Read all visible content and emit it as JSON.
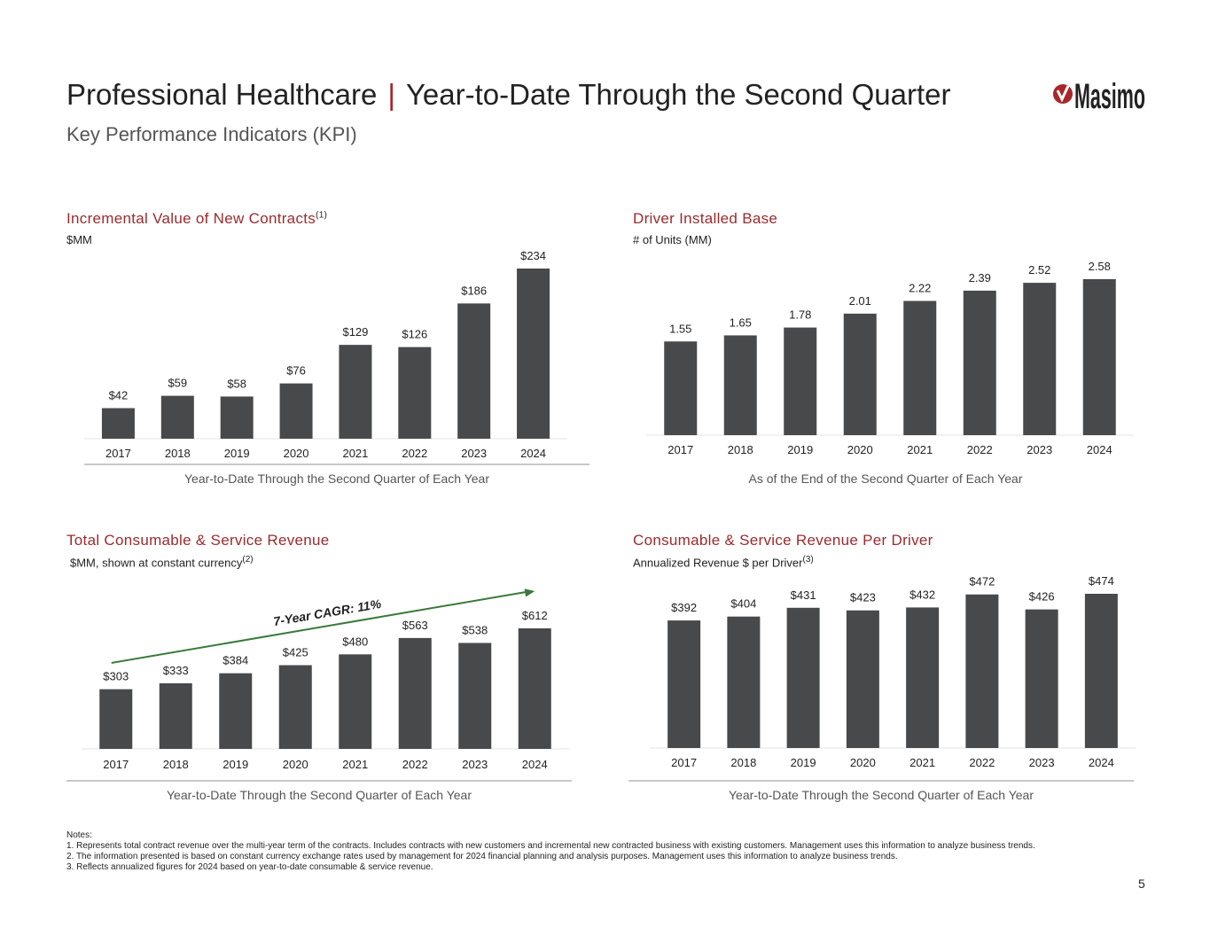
{
  "header": {
    "title_left": "Professional Healthcare",
    "title_sep": "|",
    "title_right": "Year-to-Date Through the Second Quarter",
    "subtitle": "Key Performance Indicators (KPI)",
    "logo_text": "Masimo",
    "brand_color": "#a8262b"
  },
  "panels": [
    {
      "title": "Incremental Value of New Contracts",
      "title_sup": "(1)",
      "unit": "$MM",
      "unit_sup": "",
      "footer": "Year-to-Date Through the Second Quarter of Each Year"
    },
    {
      "title": "Driver Installed Base",
      "title_sup": "",
      "unit": "# of Units (MM)",
      "unit_sup": "",
      "footer": "As of the End of the Second Quarter of Each Year"
    },
    {
      "title": "Total Consumable & Service Revenue",
      "title_sup": "",
      "unit": "$MM, shown at constant currency",
      "unit_sup": "(2)",
      "footer": "Year-to-Date Through the Second Quarter of Each Year"
    },
    {
      "title": "Consumable & Service Revenue Per Driver",
      "title_sup": "",
      "unit": "Annualized Revenue $ per Driver",
      "unit_sup": "(3)",
      "footer": "Year-to-Date Through the Second Quarter of Each Year"
    }
  ],
  "chart_data": [
    {
      "type": "bar",
      "title": "Incremental Value of New Contracts",
      "ylabel": "$MM",
      "categories": [
        "2017",
        "2018",
        "2019",
        "2020",
        "2021",
        "2022",
        "2023",
        "2024"
      ],
      "values": [
        42,
        59,
        58,
        76,
        129,
        126,
        186,
        234
      ],
      "labels": [
        "$42",
        "$59",
        "$58",
        "$76",
        "$129",
        "$126",
        "$186",
        "$234"
      ],
      "ylim": [
        0,
        234
      ],
      "grid": false,
      "bar_color": "#48494b"
    },
    {
      "type": "bar",
      "title": "Driver Installed Base",
      "ylabel": "# of Units (MM)",
      "categories": [
        "2017",
        "2018",
        "2019",
        "2020",
        "2021",
        "2022",
        "2023",
        "2024"
      ],
      "values": [
        1.55,
        1.65,
        1.78,
        2.01,
        2.22,
        2.39,
        2.52,
        2.58
      ],
      "labels": [
        "1.55",
        "1.65",
        "1.78",
        "2.01",
        "2.22",
        "2.39",
        "2.52",
        "2.58"
      ],
      "ylim": [
        0,
        2.58
      ],
      "grid": false,
      "bar_color": "#48494b"
    },
    {
      "type": "bar",
      "title": "Total Consumable & Service Revenue",
      "ylabel": "$MM, shown at constant currency",
      "categories": [
        "2017",
        "2018",
        "2019",
        "2020",
        "2021",
        "2022",
        "2023",
        "2024"
      ],
      "values": [
        303,
        333,
        384,
        425,
        480,
        563,
        538,
        612
      ],
      "labels": [
        "$303",
        "$333",
        "$384",
        "$425",
        "$480",
        "$563",
        "$538",
        "$612"
      ],
      "ylim": [
        0,
        612
      ],
      "grid": false,
      "bar_color": "#48494b",
      "annotation": "7-Year CAGR: 11%",
      "annotation_color": "#3a7a3a"
    },
    {
      "type": "bar",
      "title": "Consumable & Service Revenue Per Driver",
      "ylabel": "Annualized Revenue $ per Driver",
      "categories": [
        "2017",
        "2018",
        "2019",
        "2020",
        "2021",
        "2022",
        "2023",
        "2024"
      ],
      "values": [
        392,
        404,
        431,
        423,
        432,
        472,
        426,
        474
      ],
      "labels": [
        "$392",
        "$404",
        "$431",
        "$423",
        "$432",
        "$472",
        "$426",
        "$474"
      ],
      "ylim": [
        0,
        474
      ],
      "grid": false,
      "bar_color": "#48494b"
    }
  ],
  "notes": {
    "heading": "Notes:",
    "items": [
      "1.  Represents total contract revenue over the multi-year term of the contracts.  Includes contracts with new customers and incremental new contracted business with existing customers. Management uses this information to analyze business trends.",
      "2.  The information presented is based on constant currency exchange rates used by management for 2024 financial planning and analysis purposes.  Management uses this information to analyze business trends.",
      "3.  Reflects annualized figures for 2024 based on year-to-date consumable & service revenue."
    ]
  },
  "page_number": "5"
}
